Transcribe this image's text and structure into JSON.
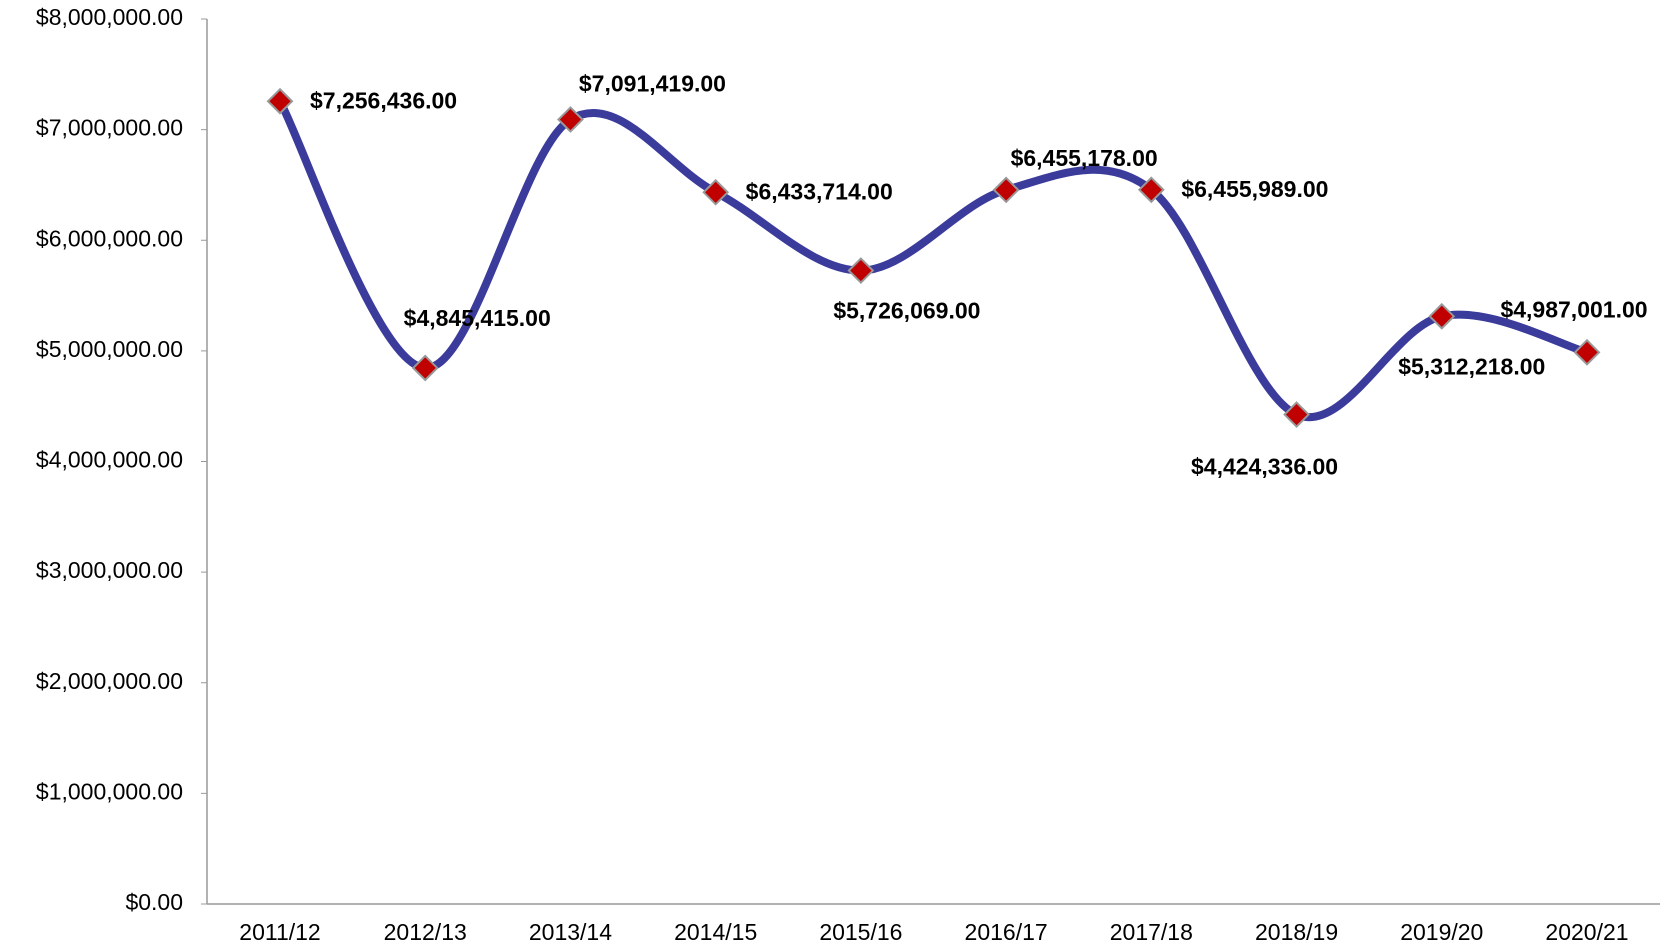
{
  "chart_data": {
    "type": "line",
    "categories": [
      "2011/12",
      "2012/13",
      "2013/14",
      "2014/15",
      "2015/16",
      "2016/17",
      "2017/18",
      "2018/19",
      "2019/20",
      "2020/21"
    ],
    "series": [
      {
        "color": "#3b3b9c",
        "marker_color": "#c00000",
        "values": [
          7256436,
          4845415,
          7091419,
          6433714,
          5726069,
          6455178,
          6455989,
          4424336,
          5312218,
          4987001
        ],
        "value_labels": [
          "$7,256,436.00",
          "$4,845,415.00",
          "$7,091,419.00",
          "$6,433,714.00",
          "$5,726,069.00",
          "$6,455,178.00",
          "$6,455,989.00",
          "$4,424,336.00",
          "$5,312,218.00",
          "$4,987,001.00"
        ]
      }
    ],
    "ylim": [
      0,
      8000000
    ],
    "yticks": [
      {
        "value": 0,
        "label": "$0.00"
      },
      {
        "value": 1000000,
        "label": "$1,000,000.00"
      },
      {
        "value": 2000000,
        "label": "$2,000,000.00"
      },
      {
        "value": 3000000,
        "label": "$3,000,000.00"
      },
      {
        "value": 4000000,
        "label": "$4,000,000.00"
      },
      {
        "value": 5000000,
        "label": "$5,000,000.00"
      },
      {
        "value": 6000000,
        "label": "$6,000,000.00"
      },
      {
        "value": 7000000,
        "label": "$7,000,000.00"
      },
      {
        "value": 8000000,
        "label": "$8,000,000.00"
      }
    ],
    "grid": false,
    "smooth": true
  }
}
